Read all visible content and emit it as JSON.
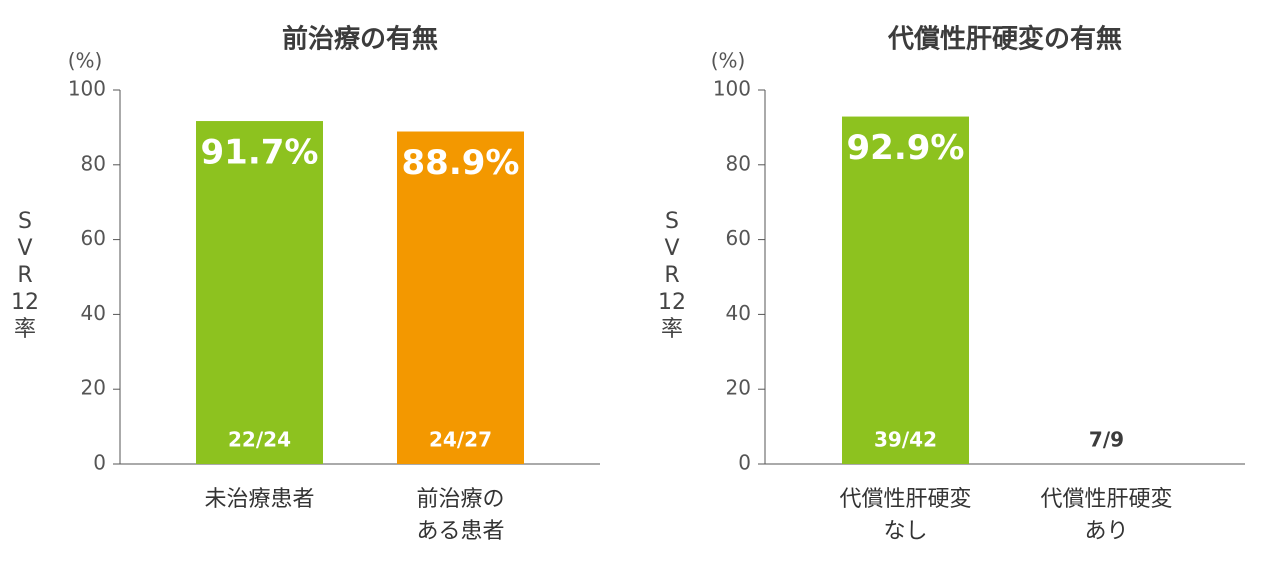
{
  "chart_data": [
    {
      "type": "bar",
      "title": "前治療の有無",
      "y_label": "SVR12率",
      "unit": "(%)",
      "categories": [
        "未治療患者",
        "前治療の\nある患者"
      ],
      "values": [
        91.7,
        88.9
      ],
      "value_labels": [
        "91.7%",
        "88.9%"
      ],
      "counts": [
        "22/24",
        "24/27"
      ],
      "colors": [
        "#8dc21f",
        "#f39800"
      ],
      "ylim": [
        0,
        100
      ],
      "yticks": [
        0,
        20,
        40,
        60,
        80,
        100
      ]
    },
    {
      "type": "bar",
      "title": "代償性肝硬変の有無",
      "y_label": "SVR12率",
      "unit": "(%)",
      "categories": [
        "代償性肝硬変\nなし",
        "代償性肝硬変\nあり"
      ],
      "values": [
        92.9,
        null
      ],
      "value_labels": [
        "92.9%",
        null
      ],
      "counts": [
        "39/42",
        "7/9"
      ],
      "colors": [
        "#8dc21f",
        null
      ],
      "ylim": [
        0,
        100
      ],
      "yticks": [
        0,
        20,
        40,
        60,
        80,
        100
      ]
    }
  ]
}
